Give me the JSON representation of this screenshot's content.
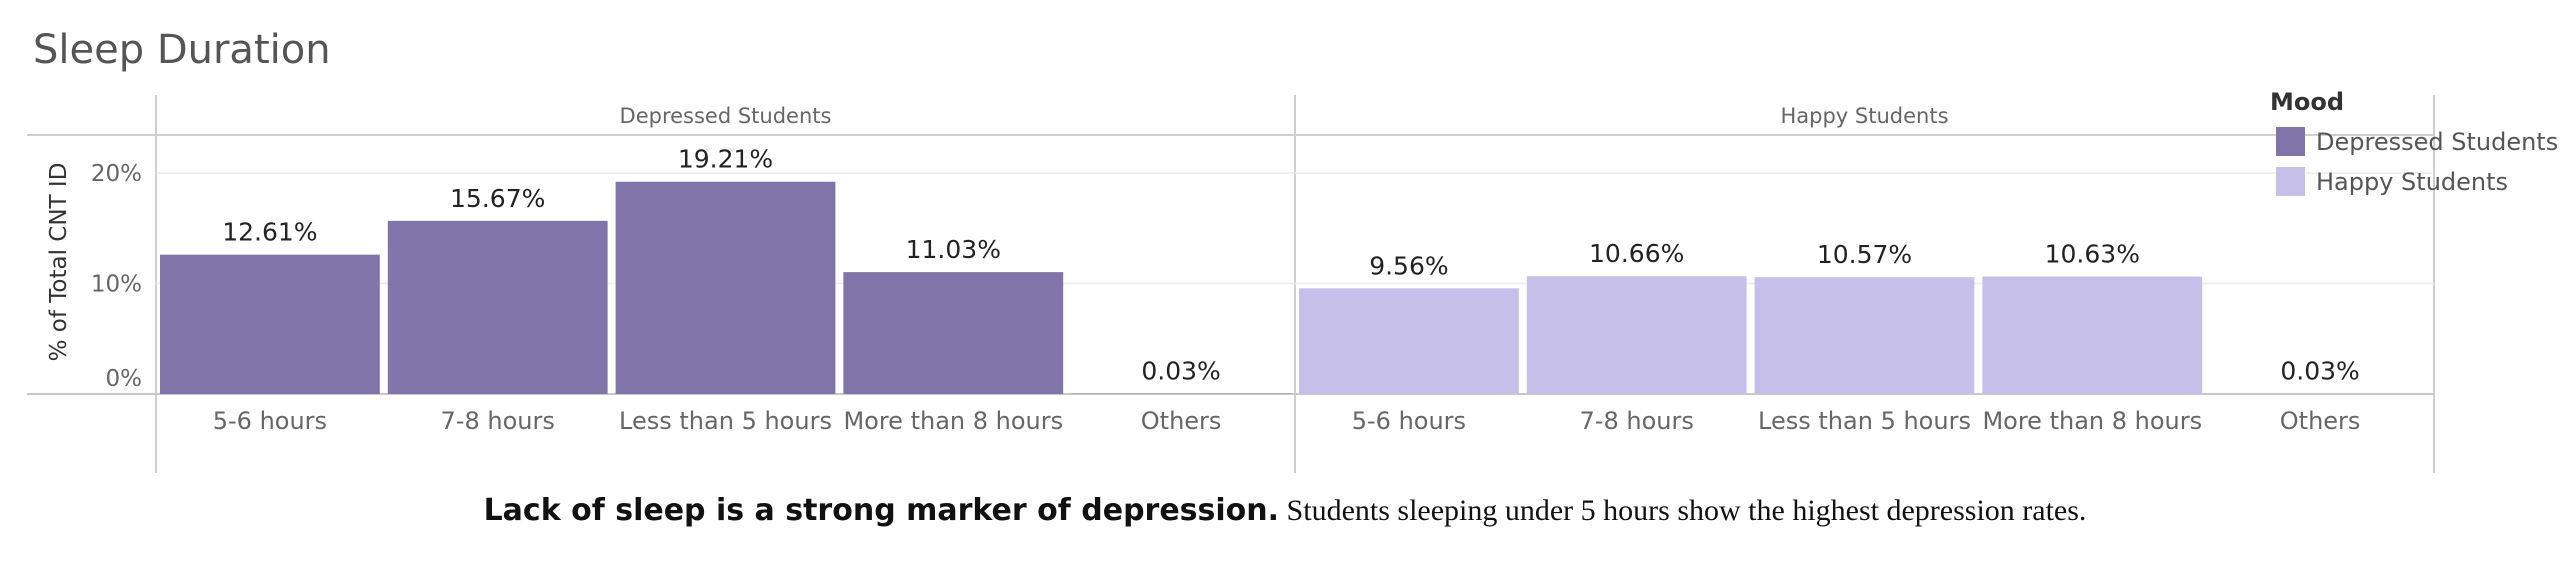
{
  "chart_data": {
    "type": "bar",
    "title": "Sleep Duration",
    "ylabel": "% of Total CNT ID",
    "ylim": [
      0,
      25
    ],
    "yticks": [
      "0%",
      "10%",
      "20%"
    ],
    "ytick_values": [
      0,
      10,
      20
    ],
    "categories": [
      "5-6 hours",
      "7-8 hours",
      "Less than 5 hours",
      "More than 8 hours",
      "Others"
    ],
    "series": [
      {
        "name": "Depressed Students",
        "values": [
          12.61,
          15.67,
          19.21,
          11.03,
          0.03
        ],
        "labels": [
          "12.61%",
          "15.67%",
          "19.21%",
          "11.03%",
          "0.03%"
        ],
        "color": "#7f75a8"
      },
      {
        "name": "Happy Students",
        "values": [
          9.56,
          10.66,
          10.57,
          10.63,
          0.03
        ],
        "labels": [
          "9.56%",
          "10.66%",
          "10.57%",
          "10.63%",
          "0.03%"
        ],
        "color": "#c5bfea"
      }
    ],
    "legend": {
      "title": "Mood",
      "position": "top-right"
    },
    "grid": true
  },
  "caption": {
    "bold": "Lack of sleep is a strong marker of depression.",
    "rest": " Students sleeping under 5 hours show the highest depression rates."
  }
}
